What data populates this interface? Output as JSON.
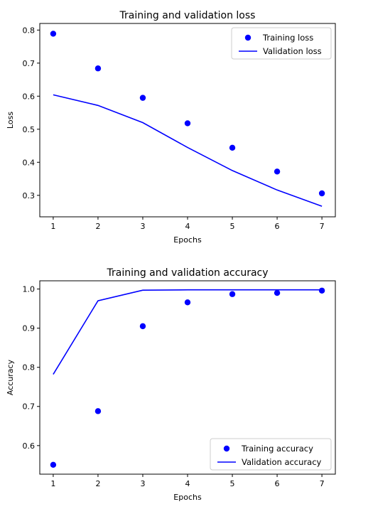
{
  "chart_data": [
    {
      "type": "line",
      "title": "Training and validation loss",
      "xlabel": "Epochs",
      "ylabel": "Loss",
      "xlim": [
        0.7,
        7.3
      ],
      "ylim": [
        0.235,
        0.82
      ],
      "xticks": [
        1,
        2,
        3,
        4,
        5,
        6,
        7
      ],
      "yticks": [
        0.3,
        0.4,
        0.5,
        0.6,
        0.7,
        0.8
      ],
      "grid": false,
      "legend_position": "top-right",
      "x": [
        1,
        2,
        3,
        4,
        5,
        6,
        7
      ],
      "series": [
        {
          "name": "Training loss",
          "style": "scatter",
          "color": "#0000ff",
          "values": [
            0.789,
            0.684,
            0.595,
            0.518,
            0.444,
            0.372,
            0.306
          ]
        },
        {
          "name": "Validation loss",
          "style": "line",
          "color": "#0000ff",
          "values": [
            0.604,
            0.572,
            0.52,
            0.445,
            0.375,
            0.316,
            0.267
          ]
        }
      ]
    },
    {
      "type": "line",
      "title": "Training and validation accuracy",
      "xlabel": "Epochs",
      "ylabel": "Accuracy",
      "xlim": [
        0.7,
        7.3
      ],
      "ylim": [
        0.527,
        1.021
      ],
      "xticks": [
        1,
        2,
        3,
        4,
        5,
        6,
        7
      ],
      "yticks": [
        0.6,
        0.7,
        0.8,
        0.9,
        1.0
      ],
      "grid": false,
      "legend_position": "bottom-right",
      "x": [
        1,
        2,
        3,
        4,
        5,
        6,
        7
      ],
      "series": [
        {
          "name": "Training accuracy",
          "style": "scatter",
          "color": "#0000ff",
          "values": [
            0.551,
            0.688,
            0.905,
            0.966,
            0.987,
            0.99,
            0.996
          ]
        },
        {
          "name": "Validation accuracy",
          "style": "line",
          "color": "#0000ff",
          "values": [
            0.782,
            0.97,
            0.997,
            0.998,
            0.998,
            0.998,
            0.998
          ]
        }
      ]
    }
  ]
}
